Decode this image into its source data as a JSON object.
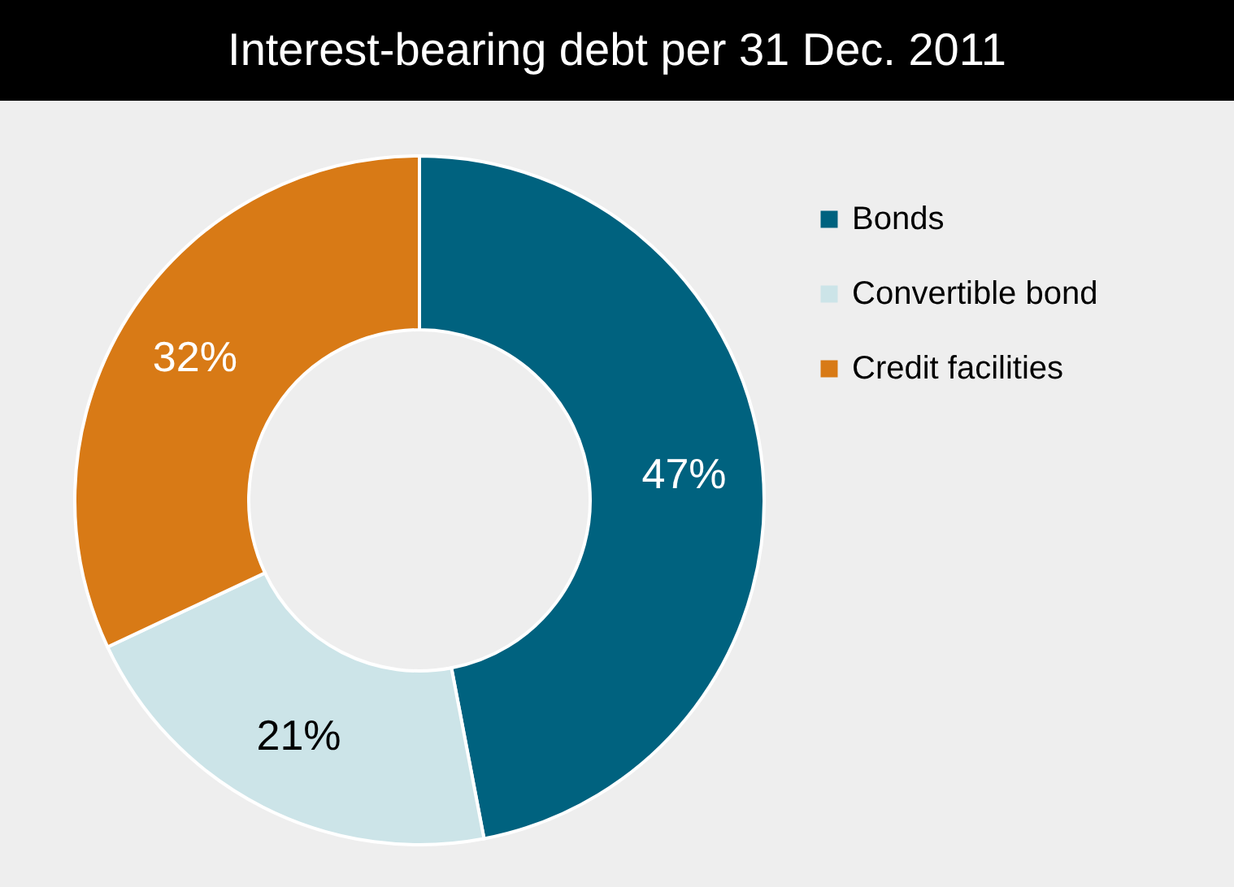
{
  "chart_data": {
    "type": "donut",
    "title": "Interest-bearing debt per 31 Dec. 2011",
    "categories": [
      "Bonds",
      "Convertible bond",
      "Credit facilities"
    ],
    "values": [
      47,
      21,
      32
    ],
    "colors": [
      "#00627f",
      "#cce4e8",
      "#d87a16"
    ],
    "value_labels": [
      "47%",
      "21%",
      "32%"
    ],
    "legend": "right"
  }
}
